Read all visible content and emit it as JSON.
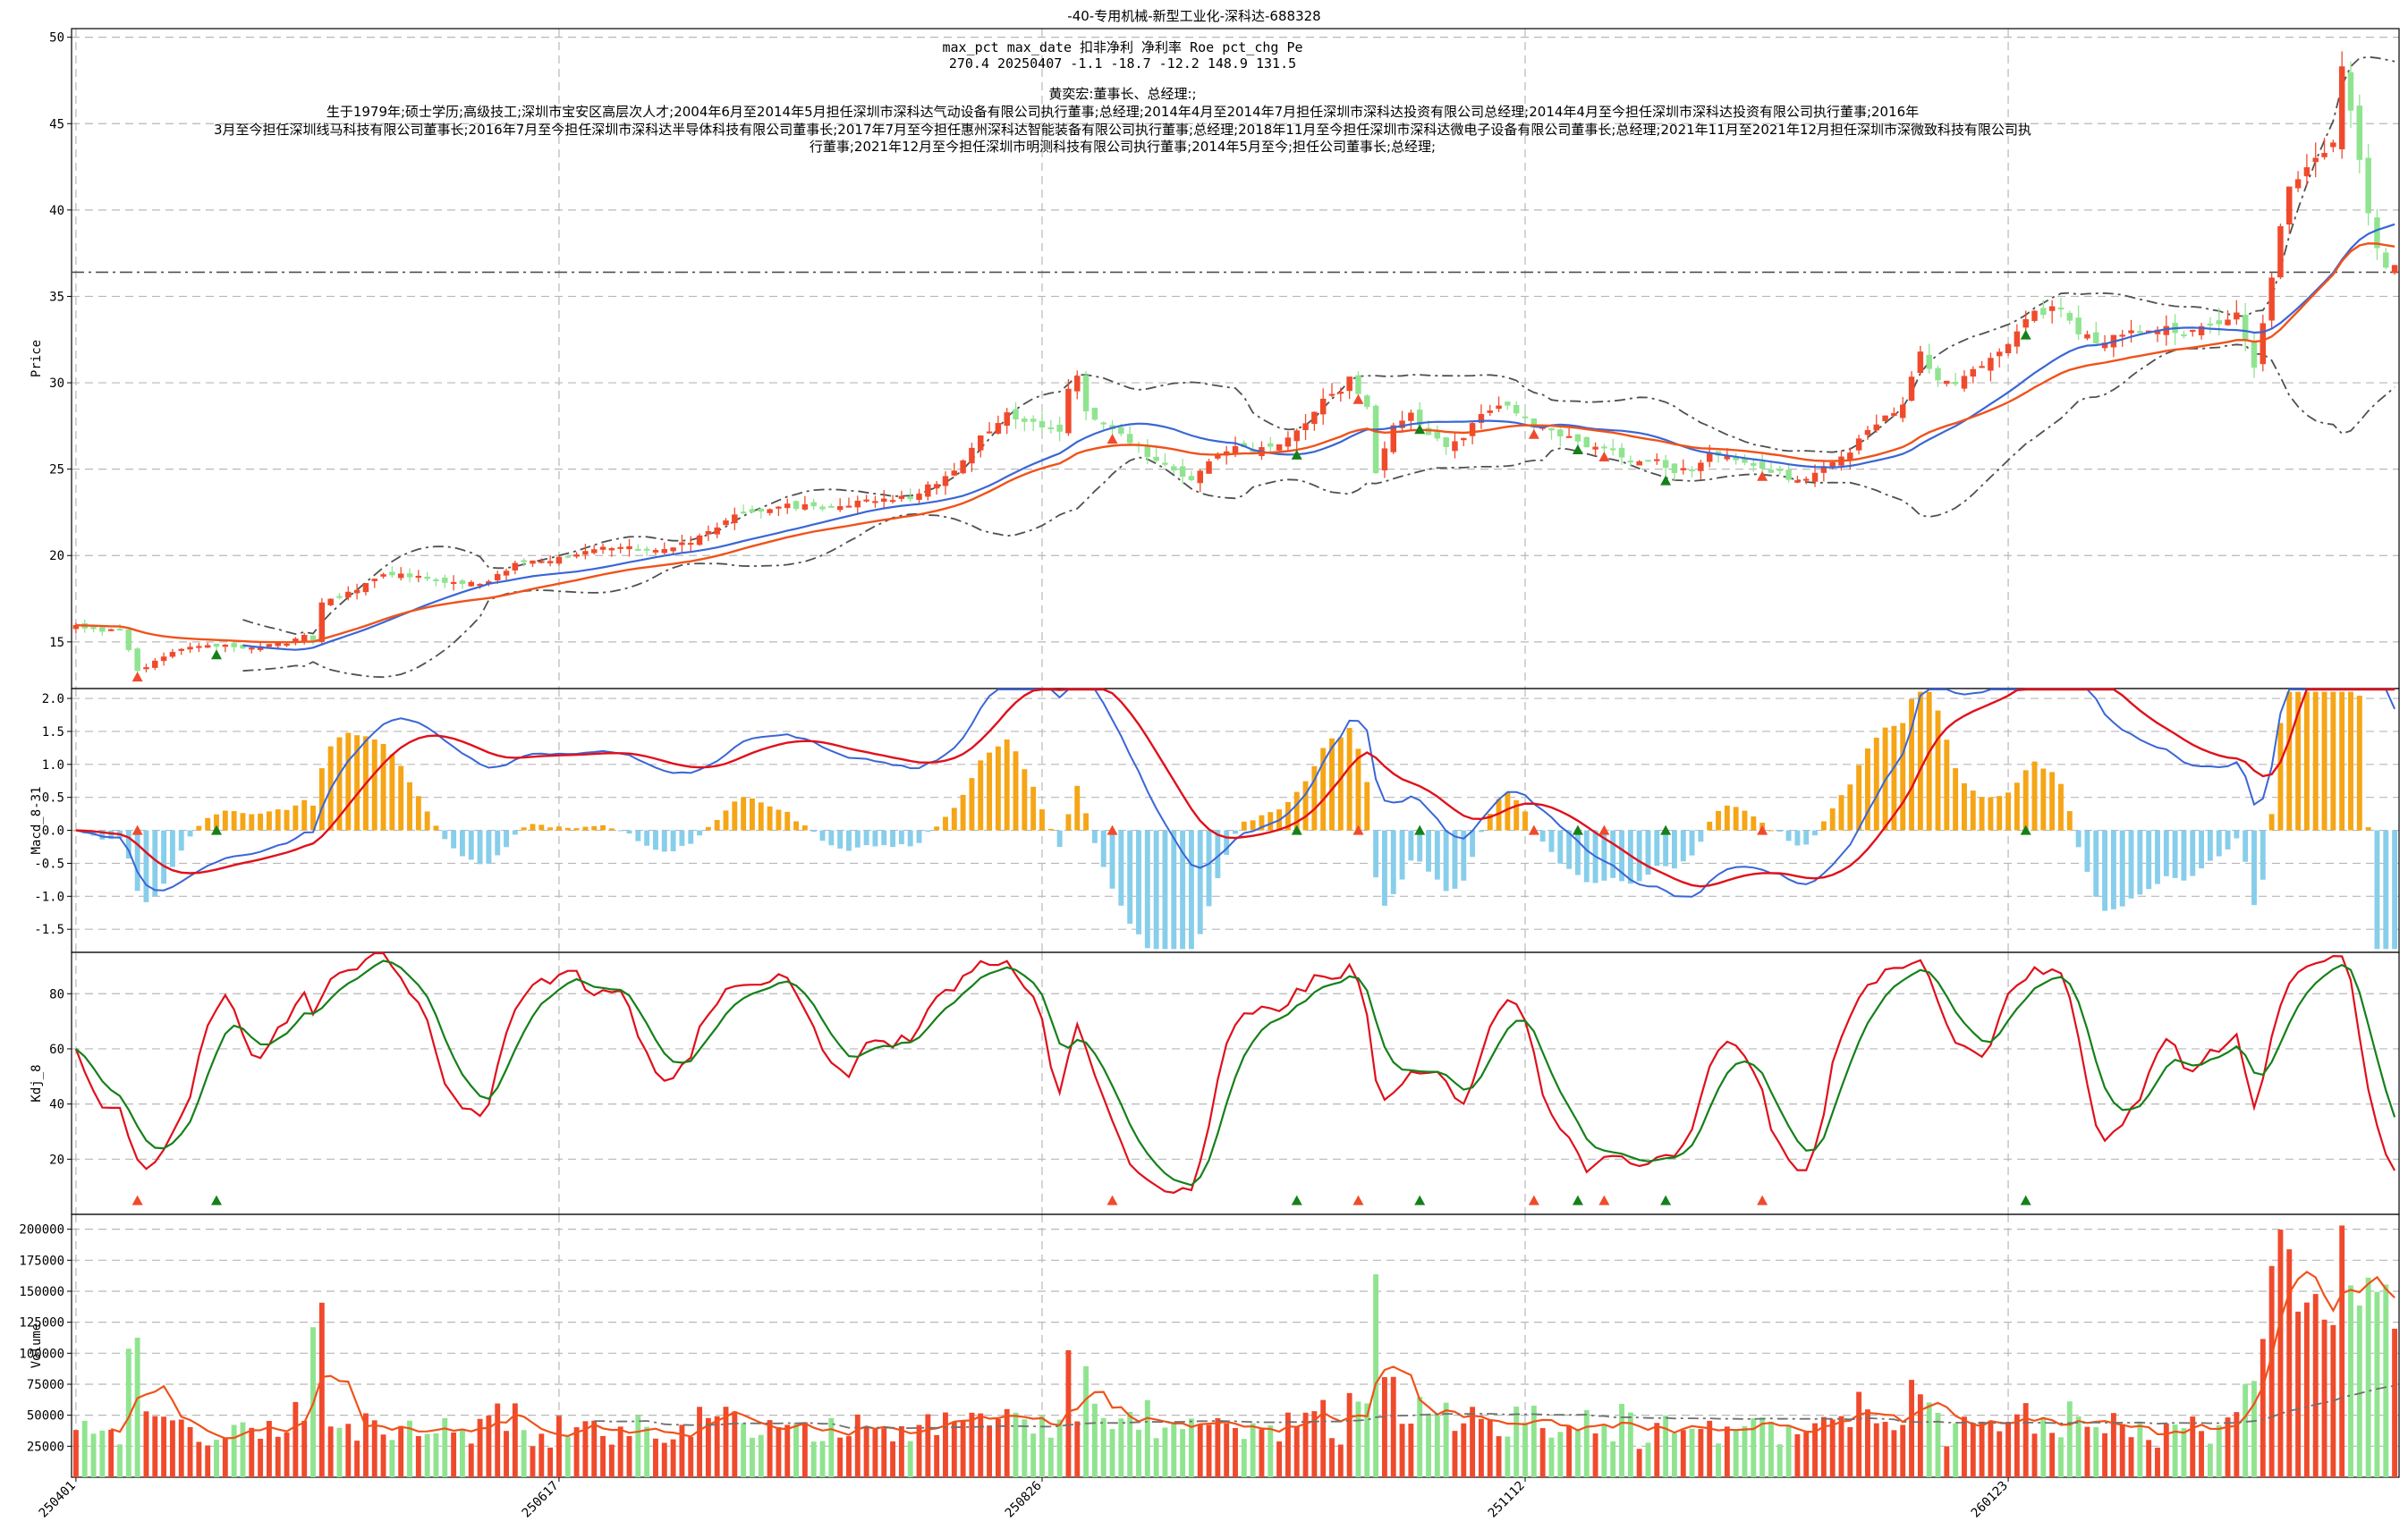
{
  "title": "-40-专用机械-新型工业化-深科达-688328",
  "info": {
    "header": "max_pct  max_date  扣非净利  净利率  Roe  pct_chg  Pe",
    "values": "270.4    20250407    -1.1    -18.7    -12.2    148.9    131.5",
    "person": "黄奕宏:董事长、总经理:;",
    "bio_lines": [
      "生于1979年;硕士学历;高级技工;深圳市宝安区高层次人才;2004年6月至2014年5月担任深圳市深科达气动设备有限公司执行董事;总经理;2014年4月至2014年7月担任深圳市深科达投资有限公司总经理;2014年4月至今担任深圳市深科达投资有限公司执行董事;2016年",
      "3月至今担任深圳线马科技有限公司董事长;2016年7月至今担任深圳市深科达半导体科技有限公司董事长;2017年7月至今担任惠州深科达智能装备有限公司执行董事;总经理;2018年11月至今担任深圳市深科达微电子设备有限公司董事长;总经理;2021年11月至2021年12月担任深圳市深微致科技有限公司执",
      "行董事;2021年12月至今担任深圳市明测科技有限公司执行董事;2014年5月至今;担任公司董事长;总经理;"
    ]
  },
  "chart_data": {
    "type": "candlestick",
    "x_tick_labels": [
      "250401",
      "250617",
      "250826",
      "251112",
      "260123"
    ],
    "x_tick_index": [
      0,
      55,
      110,
      165,
      220
    ],
    "n_bars": 265,
    "price_axis": {
      "ylabel": "Price",
      "ylim": [
        12.3,
        50.5
      ],
      "ticks": [
        15,
        20,
        25,
        30,
        35,
        40,
        45,
        50
      ]
    },
    "macd_axis": {
      "ylabel": "Macd_8-31",
      "ylim": [
        -1.85,
        2.15
      ],
      "ticks": [
        -1.5,
        -1.0,
        -0.5,
        0.0,
        0.5,
        1.0,
        1.5,
        2.0
      ]
    },
    "kdj_axis": {
      "ylabel": "Kdj_8",
      "ylim": [
        0,
        95
      ],
      "ticks": [
        20,
        40,
        60,
        80
      ]
    },
    "volume_axis": {
      "ylabel": "Volume",
      "ylim": [
        0,
        212000
      ],
      "ticks": [
        25000,
        50000,
        75000,
        100000,
        125000,
        150000,
        175000,
        200000
      ]
    },
    "reference_price": 36.4,
    "close_anchors": [
      [
        0,
        15.9
      ],
      [
        3,
        15.6
      ],
      [
        5,
        15.8
      ],
      [
        7,
        13.3
      ],
      [
        10,
        14.2
      ],
      [
        12,
        14.6
      ],
      [
        15,
        14.8
      ],
      [
        20,
        14.7
      ],
      [
        24,
        14.9
      ],
      [
        26,
        15.3
      ],
      [
        27,
        15.0
      ],
      [
        28,
        17.3
      ],
      [
        30,
        17.5
      ],
      [
        33,
        18.4
      ],
      [
        35,
        18.9
      ],
      [
        38,
        18.8
      ],
      [
        42,
        18.5
      ],
      [
        46,
        18.3
      ],
      [
        50,
        19.5
      ],
      [
        55,
        19.8
      ],
      [
        60,
        20.5
      ],
      [
        66,
        20.3
      ],
      [
        70,
        20.8
      ],
      [
        75,
        22.3
      ],
      [
        80,
        22.9
      ],
      [
        85,
        22.8
      ],
      [
        90,
        23.1
      ],
      [
        95,
        23.4
      ],
      [
        100,
        24.8
      ],
      [
        103,
        26.9
      ],
      [
        106,
        28.1
      ],
      [
        110,
        27.6
      ],
      [
        112,
        27.2
      ],
      [
        113,
        29.5
      ],
      [
        114,
        30.2
      ],
      [
        115,
        28.2
      ],
      [
        118,
        27.4
      ],
      [
        120,
        26.6
      ],
      [
        123,
        25.5
      ],
      [
        125,
        25.0
      ],
      [
        127,
        24.4
      ],
      [
        130,
        25.8
      ],
      [
        132,
        26.2
      ],
      [
        135,
        26.1
      ],
      [
        138,
        26.8
      ],
      [
        140,
        27.7
      ],
      [
        142,
        28.9
      ],
      [
        144,
        29.6
      ],
      [
        145,
        30.2
      ],
      [
        147,
        28.6
      ],
      [
        148,
        24.8
      ],
      [
        150,
        27.4
      ],
      [
        152,
        28.1
      ],
      [
        154,
        27.1
      ],
      [
        156,
        26.2
      ],
      [
        158,
        26.7
      ],
      [
        160,
        28.3
      ],
      [
        162,
        28.8
      ],
      [
        164,
        28.4
      ],
      [
        166,
        27.6
      ],
      [
        168,
        27.3
      ],
      [
        170,
        26.8
      ],
      [
        172,
        26.3
      ],
      [
        175,
        26.1
      ],
      [
        178,
        25.3
      ],
      [
        180,
        25.5
      ],
      [
        182,
        24.9
      ],
      [
        184,
        25.1
      ],
      [
        186,
        25.8
      ],
      [
        188,
        25.6
      ],
      [
        190,
        25.3
      ],
      [
        192,
        25.1
      ],
      [
        194,
        24.8
      ],
      [
        196,
        24.2
      ],
      [
        198,
        24.8
      ],
      [
        200,
        25.4
      ],
      [
        202,
        26.1
      ],
      [
        204,
        27.3
      ],
      [
        206,
        28.0
      ],
      [
        208,
        28.8
      ],
      [
        210,
        31.7
      ],
      [
        212,
        30.3
      ],
      [
        214,
        30.0
      ],
      [
        216,
        30.7
      ],
      [
        218,
        31.4
      ],
      [
        220,
        32.2
      ],
      [
        222,
        33.8
      ],
      [
        224,
        34.1
      ],
      [
        226,
        34.5
      ],
      [
        228,
        32.9
      ],
      [
        230,
        32.3
      ],
      [
        232,
        32.7
      ],
      [
        234,
        32.9
      ],
      [
        236,
        33.1
      ],
      [
        238,
        33.4
      ],
      [
        240,
        32.7
      ],
      [
        242,
        33.1
      ],
      [
        244,
        33.6
      ],
      [
        246,
        33.9
      ],
      [
        248,
        31.0
      ],
      [
        250,
        36.2
      ],
      [
        252,
        41.5
      ],
      [
        254,
        42.5
      ],
      [
        256,
        43.5
      ],
      [
        257,
        44.0
      ],
      [
        258,
        48.5
      ],
      [
        259,
        45.5
      ],
      [
        260,
        43.0
      ],
      [
        261,
        40.0
      ],
      [
        262,
        38.0
      ],
      [
        263,
        36.6
      ],
      [
        264,
        36.8
      ]
    ],
    "signals": [
      {
        "i": 7,
        "type": "buy"
      },
      {
        "i": 16,
        "type": "sell"
      },
      {
        "i": 118,
        "type": "buy"
      },
      {
        "i": 139,
        "type": "sell"
      },
      {
        "i": 146,
        "type": "buy"
      },
      {
        "i": 153,
        "type": "sell"
      },
      {
        "i": 166,
        "type": "buy"
      },
      {
        "i": 171,
        "type": "sell"
      },
      {
        "i": 174,
        "type": "buy"
      },
      {
        "i": 181,
        "type": "sell"
      },
      {
        "i": 192,
        "type": "buy"
      },
      {
        "i": 222,
        "type": "sell"
      }
    ],
    "colors": {
      "up": "#f04a2c",
      "down": "#90e490",
      "ma_fast": "#3a66d6",
      "ma_slow": "#f0521a",
      "band": "#505050",
      "macd_pos": "#f5a516",
      "macd_neg": "#87ceeb",
      "dif": "#3a66d6",
      "dea": "#e0101c",
      "k": "#e0101c",
      "d": "#15801a",
      "vol_ma": "#f0521a",
      "vol_ma_long": "#707070",
      "buy": "#f04a2c",
      "sell": "#15801a",
      "grid": "#b8b8b8"
    }
  }
}
